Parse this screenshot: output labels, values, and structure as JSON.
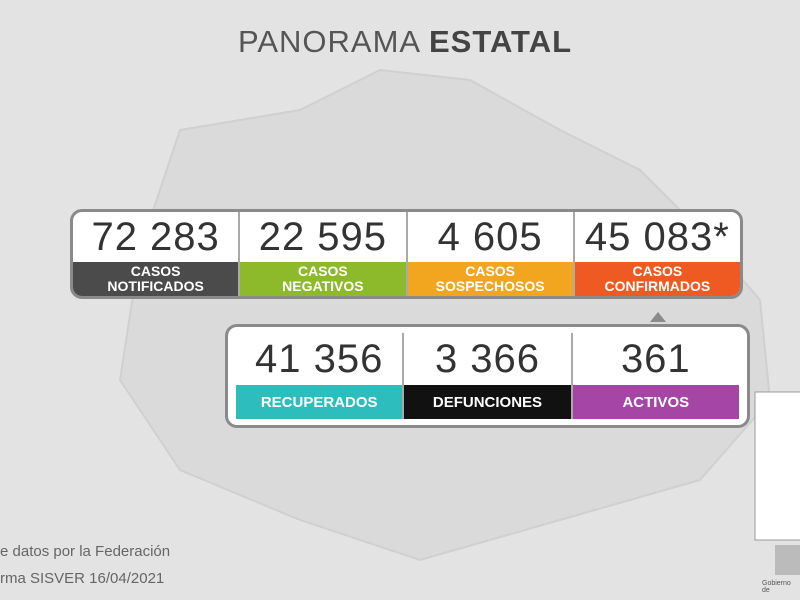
{
  "header": {
    "title_light": "PANORAMA",
    "title_bold": "ESTATAL"
  },
  "row1": [
    {
      "number": "72 283",
      "label": [
        "CASOS",
        "NOTIFICADOS"
      ],
      "color": "#4b4b4b"
    },
    {
      "number": "22 595",
      "label": [
        "CASOS",
        "NEGATIVOS"
      ],
      "color": "#8dba2a"
    },
    {
      "number": "4 605",
      "label": [
        "CASOS",
        "SOSPECHOSOS"
      ],
      "color": "#f2a51f"
    },
    {
      "number": "45 083*",
      "label": [
        "CASOS",
        "CONFIRMADOS"
      ],
      "color": "#ef5a23"
    }
  ],
  "row2": [
    {
      "number": "41 356",
      "label": [
        "RECUPERADOS"
      ],
      "color": "#2dbdbd"
    },
    {
      "number": "3 366",
      "label": [
        "DEFUNCIONES"
      ],
      "color": "#111111"
    },
    {
      "number": "361",
      "label": [
        "ACTIVOS"
      ],
      "color": "#a545a5"
    }
  ],
  "footer": [
    "e datos por la Federación",
    "rma SISVER 16/04/2021"
  ],
  "logo_text": "Gobierno de"
}
